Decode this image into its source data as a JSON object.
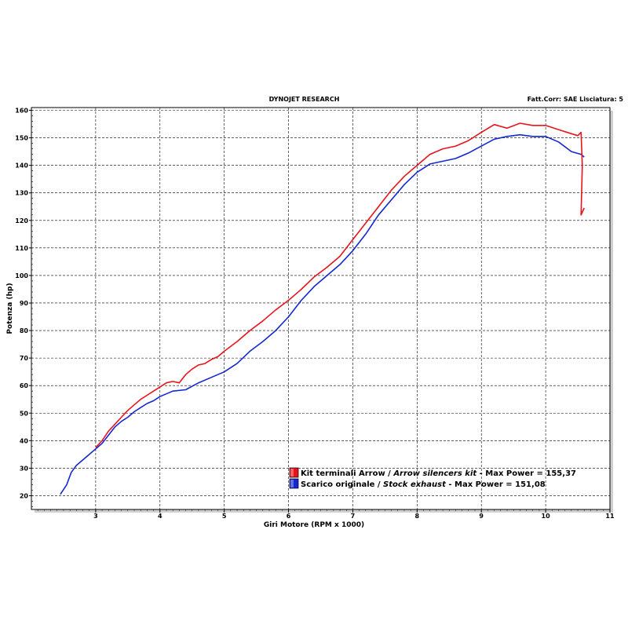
{
  "header": {
    "title": "DYNOJET RESEARCH",
    "correction": "Fatt.Corr: SAE  Lisciatura: 5"
  },
  "colors": {
    "series1": "#e8141c",
    "series2": "#1428d2",
    "grid": "#000000",
    "frame_shadow": "#cfcfcf"
  },
  "legend": [
    {
      "prefix": "Kit terminali Arrow / ",
      "italic": "Arrow silencers kit",
      "suffix": " - Max Power = 155,37"
    },
    {
      "prefix": "Scarico originale / ",
      "italic": "Stock exhaust",
      "suffix": " - Max Power = 151,08"
    }
  ],
  "chart_data": {
    "type": "line",
    "title": "DYNOJET RESEARCH",
    "xlabel": "Giri Motore (RPM x 1000)",
    "ylabel": "Potenza (hp)",
    "xlim": [
      2.0,
      11.0
    ],
    "ylim": [
      15,
      161
    ],
    "xticks": [
      3,
      4,
      5,
      6,
      7,
      8,
      9,
      10,
      11
    ],
    "yticks": [
      20,
      30,
      40,
      50,
      60,
      70,
      80,
      90,
      100,
      110,
      120,
      130,
      140,
      150,
      160
    ],
    "grid": "dashed",
    "legend_position": "bottom-right",
    "series": [
      {
        "name": "Kit terminali Arrow / Arrow silencers kit - Max Power = 155,37",
        "color": "#e8141c",
        "points": [
          [
            3.0,
            37.5
          ],
          [
            3.1,
            40.0
          ],
          [
            3.2,
            43.5
          ],
          [
            3.3,
            46.0
          ],
          [
            3.4,
            48.5
          ],
          [
            3.5,
            51.0
          ],
          [
            3.6,
            53.0
          ],
          [
            3.7,
            55.0
          ],
          [
            3.8,
            56.5
          ],
          [
            3.9,
            58.0
          ],
          [
            4.0,
            59.5
          ],
          [
            4.1,
            61.0
          ],
          [
            4.2,
            61.5
          ],
          [
            4.3,
            61.0
          ],
          [
            4.4,
            64.0
          ],
          [
            4.5,
            66.0
          ],
          [
            4.6,
            67.5
          ],
          [
            4.7,
            68.0
          ],
          [
            4.8,
            69.5
          ],
          [
            4.9,
            70.5
          ],
          [
            5.0,
            72.5
          ],
          [
            5.2,
            76.0
          ],
          [
            5.4,
            80.0
          ],
          [
            5.6,
            83.5
          ],
          [
            5.8,
            87.5
          ],
          [
            6.0,
            91.0
          ],
          [
            6.2,
            95.0
          ],
          [
            6.4,
            99.5
          ],
          [
            6.6,
            103.0
          ],
          [
            6.8,
            107.0
          ],
          [
            7.0,
            113.0
          ],
          [
            7.2,
            119.0
          ],
          [
            7.4,
            125.0
          ],
          [
            7.6,
            131.0
          ],
          [
            7.8,
            136.0
          ],
          [
            8.0,
            140.0
          ],
          [
            8.2,
            144.0
          ],
          [
            8.4,
            146.0
          ],
          [
            8.6,
            147.0
          ],
          [
            8.8,
            149.0
          ],
          [
            9.0,
            152.0
          ],
          [
            9.2,
            154.8
          ],
          [
            9.4,
            153.5
          ],
          [
            9.6,
            155.3
          ],
          [
            9.8,
            154.5
          ],
          [
            10.0,
            154.5
          ],
          [
            10.2,
            153.0
          ],
          [
            10.4,
            151.5
          ],
          [
            10.5,
            150.8
          ],
          [
            10.55,
            152.0
          ],
          [
            10.57,
            140.0
          ],
          [
            10.55,
            122.0
          ],
          [
            10.6,
            124.5
          ]
        ]
      },
      {
        "name": "Scarico originale / Stock exhaust - Max Power = 151,08",
        "color": "#1428d2",
        "points": [
          [
            2.45,
            20.5
          ],
          [
            2.55,
            24.0
          ],
          [
            2.62,
            28.5
          ],
          [
            2.7,
            31.0
          ],
          [
            2.8,
            33.0
          ],
          [
            2.9,
            35.0
          ],
          [
            3.0,
            37.0
          ],
          [
            3.1,
            39.0
          ],
          [
            3.2,
            42.0
          ],
          [
            3.3,
            45.0
          ],
          [
            3.4,
            47.0
          ],
          [
            3.5,
            48.5
          ],
          [
            3.6,
            50.5
          ],
          [
            3.7,
            52.0
          ],
          [
            3.8,
            53.5
          ],
          [
            3.9,
            54.5
          ],
          [
            4.0,
            56.0
          ],
          [
            4.2,
            58.0
          ],
          [
            4.4,
            58.5
          ],
          [
            4.6,
            61.0
          ],
          [
            4.8,
            63.0
          ],
          [
            5.0,
            65.0
          ],
          [
            5.2,
            68.0
          ],
          [
            5.4,
            72.5
          ],
          [
            5.6,
            76.0
          ],
          [
            5.8,
            80.0
          ],
          [
            6.0,
            85.0
          ],
          [
            6.2,
            91.0
          ],
          [
            6.4,
            96.0
          ],
          [
            6.6,
            100.0
          ],
          [
            6.8,
            104.0
          ],
          [
            7.0,
            109.0
          ],
          [
            7.2,
            115.0
          ],
          [
            7.4,
            122.0
          ],
          [
            7.6,
            127.5
          ],
          [
            7.8,
            133.0
          ],
          [
            8.0,
            137.5
          ],
          [
            8.2,
            140.5
          ],
          [
            8.4,
            141.5
          ],
          [
            8.6,
            142.5
          ],
          [
            8.8,
            144.5
          ],
          [
            9.0,
            147.0
          ],
          [
            9.2,
            149.5
          ],
          [
            9.4,
            150.5
          ],
          [
            9.6,
            151.1
          ],
          [
            9.8,
            150.5
          ],
          [
            10.0,
            150.5
          ],
          [
            10.2,
            148.5
          ],
          [
            10.4,
            145.0
          ],
          [
            10.55,
            144.0
          ],
          [
            10.6,
            143.0
          ]
        ]
      }
    ]
  }
}
